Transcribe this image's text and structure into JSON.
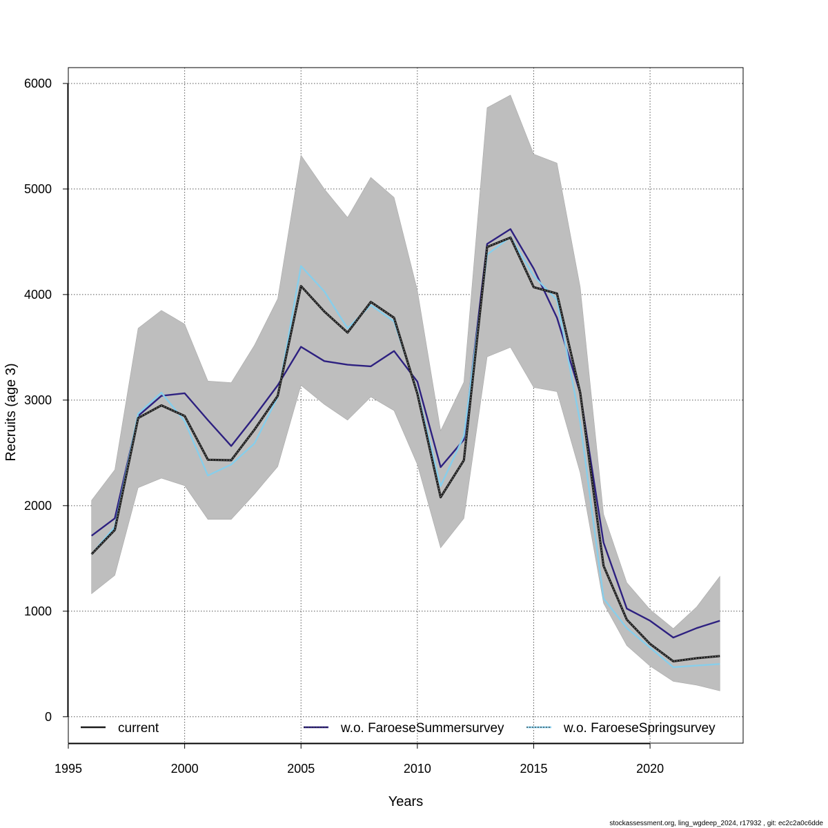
{
  "chart_data": {
    "type": "line",
    "title": "",
    "xlabel": "Years",
    "ylabel": "Recruits (age 3)",
    "xlim": [
      1995,
      2024
    ],
    "ylim": [
      -250,
      6150
    ],
    "x_ticks": [
      1995,
      2000,
      2005,
      2010,
      2015,
      2020
    ],
    "y_ticks": [
      0,
      1000,
      2000,
      3000,
      4000,
      5000,
      6000
    ],
    "grid": true,
    "legend_position": "bottom",
    "x": [
      1996,
      1997,
      1998,
      1999,
      2000,
      2001,
      2002,
      2003,
      2004,
      2005,
      2006,
      2007,
      2008,
      2009,
      2010,
      2011,
      2012,
      2013,
      2014,
      2015,
      2016,
      2017,
      2018,
      2019,
      2020,
      2021,
      2022,
      2023
    ],
    "band": {
      "color": "#bebebe",
      "upper": [
        2050,
        2340,
        3680,
        3850,
        3720,
        3180,
        3165,
        3520,
        3960,
        5320,
        5000,
        4730,
        5110,
        4920,
        4040,
        2710,
        3170,
        5770,
        5890,
        5330,
        5245,
        4070,
        1920,
        1270,
        1015,
        835,
        1040,
        1330
      ],
      "lower": [
        1165,
        1340,
        2170,
        2260,
        2190,
        1870,
        1870,
        2110,
        2370,
        3140,
        2960,
        2810,
        3030,
        2900,
        2390,
        1600,
        1880,
        3410,
        3500,
        3120,
        3080,
        2310,
        1075,
        675,
        480,
        335,
        300,
        245
      ]
    },
    "series": [
      {
        "name": "current",
        "color": "#1a1a1a",
        "values": [
          1540,
          1770,
          2830,
          2950,
          2850,
          2435,
          2430,
          2720,
          3040,
          4080,
          3840,
          3640,
          3930,
          3780,
          3060,
          2080,
          2430,
          4450,
          4540,
          4070,
          4010,
          3070,
          1430,
          920,
          690,
          525,
          555,
          575
        ]
      },
      {
        "name": "w.o. FaroeseSummersurvey",
        "color": "#2d2080",
        "values": [
          1715,
          1880,
          2850,
          3040,
          3065,
          2810,
          2565,
          2845,
          3140,
          3505,
          3370,
          3335,
          3320,
          3465,
          3175,
          2365,
          2625,
          4480,
          4620,
          4245,
          3780,
          3065,
          1650,
          1025,
          910,
          750,
          840,
          910
        ]
      },
      {
        "name": "w.o. FaroeseSpringsurvey",
        "color": "#87ceeb",
        "values": [
          1540,
          1800,
          2870,
          3070,
          2800,
          2285,
          2390,
          2590,
          3030,
          4270,
          4030,
          3680,
          3900,
          3745,
          3080,
          2185,
          2660,
          4380,
          4545,
          4175,
          3950,
          2790,
          1120,
          840,
          655,
          470,
          485,
          500
        ]
      }
    ]
  },
  "footer": {
    "text": "stockassessment.org, ling_wgdeep_2024, r17932 , git: ec2c2a0c6dde"
  }
}
